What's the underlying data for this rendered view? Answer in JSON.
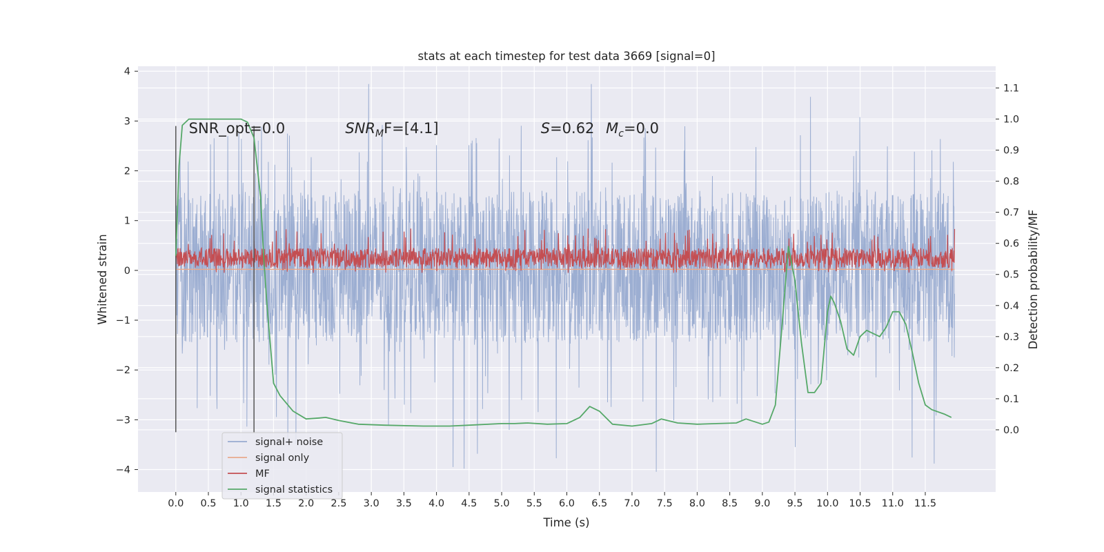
{
  "chart_data": {
    "type": "line",
    "title": "stats at each timestep for test data 3669 [signal=0]",
    "xlabel": "Time (s)",
    "ylabel": "Whitened strain",
    "y2label": "Detection probability/MF",
    "xlim": [
      -0.58,
      12.58
    ],
    "ylim": [
      -4.45,
      4.1
    ],
    "y2lim": [
      -0.2,
      1.17
    ],
    "x_ticks": [
      0.0,
      0.5,
      1.0,
      1.5,
      2.0,
      2.5,
      3.0,
      3.5,
      4.0,
      4.5,
      5.0,
      5.5,
      6.0,
      6.5,
      7.0,
      7.5,
      8.0,
      8.5,
      9.0,
      9.5,
      10.0,
      10.5,
      11.0,
      11.5
    ],
    "x_tick_labels": [
      "0.0",
      "0.5",
      "1.0",
      "1.5",
      "2.0",
      "2.5",
      "3.0",
      "3.5",
      "4.0",
      "4.5",
      "5.0",
      "5.5",
      "6.0",
      "6.5",
      "7.0",
      "7.5",
      "8.0",
      "8.5",
      "9.0",
      "9.5",
      "10.0",
      "10.5",
      "11.0",
      "11.5"
    ],
    "y_ticks": [
      -4,
      -3,
      -2,
      -1,
      0,
      1,
      2,
      3,
      4
    ],
    "y_tick_labels": [
      "−4",
      "−3",
      "−2",
      "−1",
      "0",
      "1",
      "2",
      "3",
      "4"
    ],
    "y2_ticks": [
      0.0,
      0.1,
      0.2,
      0.3,
      0.4,
      0.5,
      0.6,
      0.7,
      0.8,
      0.9,
      1.0,
      1.1
    ],
    "y2_tick_labels": [
      "0.0",
      "0.1",
      "0.2",
      "0.3",
      "0.4",
      "0.5",
      "0.6",
      "0.7",
      "0.8",
      "0.9",
      "1.0",
      "1.1"
    ],
    "grid": true,
    "legend_position": "lower-left",
    "colors": {
      "plot_bg": "#eaeaf2",
      "grid": "#ffffff",
      "noise": "#98abd0",
      "signal_only": "#e8a98c",
      "mf": "#c44e52",
      "stats": "#55a868",
      "markers": "#555555"
    },
    "annotations": [
      {
        "text": "SNR_opt=0.0",
        "x": 0.2,
        "y": 2.85
      },
      {
        "main": "SNR",
        "sub": "M",
        "rest": "F=[4.1]",
        "x": 2.6,
        "y": 2.85
      },
      {
        "text": "S=0.62",
        "x": 5.6,
        "y": 2.85
      },
      {
        "text": "M_c=0.0",
        "x": 6.6,
        "y": 2.85
      }
    ],
    "vlines": [
      {
        "x": 0.0,
        "y0": -3.25,
        "y1": 2.9
      },
      {
        "x": 1.2,
        "y0": -3.25,
        "y1": 2.9
      }
    ],
    "series": [
      {
        "name": "signal+ noise",
        "kind": "noise",
        "x_range": [
          0.0,
          11.95
        ],
        "band": [
          -1.45,
          1.6
        ],
        "spike_max": 3.75,
        "spike_min": -4.05
      },
      {
        "name": "signal only",
        "kind": "flat",
        "x_range": [
          0.0,
          11.95
        ],
        "value": 0.02
      },
      {
        "name": "MF",
        "kind": "mf",
        "x_range": [
          0.0,
          11.95
        ],
        "band": [
          0.0,
          0.55
        ],
        "spike_max": 1.0
      },
      {
        "name": "signal statistics",
        "kind": "line",
        "axis": "y2",
        "x": [
          0.0,
          0.05,
          0.1,
          0.2,
          0.3,
          0.5,
          0.8,
          1.0,
          1.1,
          1.2,
          1.3,
          1.35,
          1.4,
          1.5,
          1.6,
          1.8,
          2.0,
          2.2,
          2.3,
          2.5,
          2.8,
          3.2,
          3.8,
          4.2,
          4.5,
          5.0,
          5.2,
          5.4,
          5.7,
          6.0,
          6.2,
          6.35,
          6.5,
          6.7,
          7.0,
          7.3,
          7.45,
          7.7,
          8.0,
          8.3,
          8.6,
          8.75,
          9.0,
          9.1,
          9.2,
          9.3,
          9.4,
          9.5,
          9.6,
          9.7,
          9.8,
          9.9,
          10.0,
          10.05,
          10.1,
          10.2,
          10.3,
          10.4,
          10.5,
          10.6,
          10.7,
          10.8,
          10.9,
          11.0,
          11.1,
          11.2,
          11.3,
          11.4,
          11.5,
          11.6,
          11.8,
          11.9
        ],
        "y": [
          0.56,
          0.85,
          0.98,
          1.0,
          1.0,
          1.0,
          1.0,
          1.0,
          0.99,
          0.94,
          0.75,
          0.55,
          0.4,
          0.15,
          0.11,
          0.06,
          0.035,
          0.038,
          0.04,
          0.03,
          0.018,
          0.015,
          0.012,
          0.012,
          0.015,
          0.02,
          0.02,
          0.022,
          0.018,
          0.02,
          0.04,
          0.075,
          0.06,
          0.018,
          0.012,
          0.02,
          0.035,
          0.022,
          0.018,
          0.02,
          0.022,
          0.035,
          0.018,
          0.025,
          0.08,
          0.33,
          0.59,
          0.48,
          0.28,
          0.12,
          0.12,
          0.15,
          0.38,
          0.43,
          0.41,
          0.35,
          0.26,
          0.24,
          0.3,
          0.32,
          0.31,
          0.3,
          0.33,
          0.38,
          0.38,
          0.34,
          0.25,
          0.15,
          0.08,
          0.065,
          0.05,
          0.04
        ]
      }
    ]
  }
}
